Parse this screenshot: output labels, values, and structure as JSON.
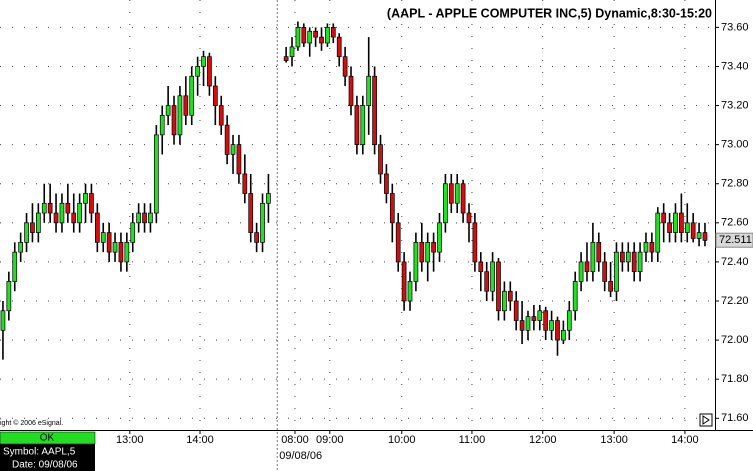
{
  "chart_data": {
    "type": "candlestick",
    "title": "(AAPL - APPLE COMPUTER INC,5) Dynamic,8:30-15:20",
    "copyright": "ight © 2006 eSignal.",
    "date_label": "09/08/06",
    "up_color": "#22e022",
    "down_color": "#d01010",
    "grid": true,
    "ylim": [
      71.54,
      73.74
    ],
    "yticks": [
      {
        "value": 71.6,
        "label": "71.60"
      },
      {
        "value": 71.8,
        "label": "71.80"
      },
      {
        "value": 72.0,
        "label": "72.00"
      },
      {
        "value": 72.2,
        "label": "72.20"
      },
      {
        "value": 72.4,
        "label": "72.40"
      },
      {
        "value": 72.6,
        "label": "72.60"
      },
      {
        "value": 72.8,
        "label": "72.80"
      },
      {
        "value": 73.0,
        "label": "73.00"
      },
      {
        "value": 73.2,
        "label": "73.20"
      },
      {
        "value": 73.4,
        "label": "73.40"
      },
      {
        "value": 73.6,
        "label": "73.60"
      }
    ],
    "xlim": [
      -0.5,
      120.7
    ],
    "xticks": [
      {
        "value": 21.5,
        "label": "13:00"
      },
      {
        "value": 33.4,
        "label": "14:00"
      },
      {
        "value": 49.5,
        "label": "08:00"
      },
      {
        "value": 55.4,
        "label": "09:00"
      },
      {
        "value": 67.6,
        "label": "10:00"
      },
      {
        "value": 79.5,
        "label": "11:00"
      },
      {
        "value": 91.5,
        "label": "12:00"
      },
      {
        "value": 103.6,
        "label": "13:00"
      },
      {
        "value": 115.6,
        "label": "14:00"
      }
    ],
    "last_price": 72.511,
    "x": [
      0,
      1,
      2,
      3,
      4,
      5,
      6,
      7,
      8,
      9,
      10,
      11,
      12,
      13,
      14,
      15,
      16,
      17,
      18,
      19,
      20,
      21,
      22,
      23,
      24,
      25,
      26,
      27,
      28,
      29,
      30,
      31,
      32,
      33,
      34,
      35,
      36,
      37,
      38,
      39,
      40,
      41,
      42,
      43,
      44,
      45,
      48,
      49,
      50,
      51,
      52,
      53,
      54,
      55,
      56,
      57,
      58,
      59,
      60,
      61,
      62,
      63,
      64,
      65,
      66,
      67,
      68,
      69,
      70,
      71,
      72,
      73,
      74,
      75,
      76,
      77,
      78,
      79,
      80,
      81,
      82,
      83,
      84,
      85,
      86,
      87,
      88,
      89,
      90,
      91,
      92,
      93,
      94,
      95,
      96,
      97,
      98,
      99,
      100,
      101,
      102,
      103,
      104,
      105,
      106,
      107,
      108,
      109,
      110,
      111,
      112,
      113,
      114,
      115,
      116,
      117,
      118,
      119
    ],
    "candles": [
      [
        72.05,
        72.2,
        71.9,
        72.15
      ],
      [
        72.15,
        72.35,
        72.1,
        72.3
      ],
      [
        72.3,
        72.5,
        72.25,
        72.45
      ],
      [
        72.45,
        72.55,
        72.4,
        72.5
      ],
      [
        72.5,
        72.65,
        72.45,
        72.6
      ],
      [
        72.6,
        72.7,
        72.5,
        72.55
      ],
      [
        72.55,
        72.7,
        72.5,
        72.65
      ],
      [
        72.65,
        72.8,
        72.6,
        72.7
      ],
      [
        72.7,
        72.8,
        72.6,
        72.65
      ],
      [
        72.65,
        72.75,
        72.55,
        72.6
      ],
      [
        72.6,
        72.75,
        72.55,
        72.7
      ],
      [
        72.7,
        72.8,
        72.6,
        72.65
      ],
      [
        72.65,
        72.75,
        72.55,
        72.6
      ],
      [
        72.6,
        72.75,
        72.55,
        72.7
      ],
      [
        72.7,
        72.8,
        72.6,
        72.75
      ],
      [
        72.75,
        72.8,
        72.6,
        72.65
      ],
      [
        72.65,
        72.7,
        72.45,
        72.5
      ],
      [
        72.5,
        72.6,
        72.45,
        72.55
      ],
      [
        72.55,
        72.6,
        72.4,
        72.45
      ],
      [
        72.45,
        72.55,
        72.4,
        72.5
      ],
      [
        72.5,
        72.55,
        72.35,
        72.4
      ],
      [
        72.4,
        72.55,
        72.35,
        72.5
      ],
      [
        72.5,
        72.65,
        72.45,
        72.6
      ],
      [
        72.6,
        72.7,
        72.55,
        72.65
      ],
      [
        72.65,
        72.7,
        72.55,
        72.6
      ],
      [
        72.6,
        72.7,
        72.55,
        72.65
      ],
      [
        72.65,
        73.1,
        72.6,
        73.05
      ],
      [
        73.05,
        73.2,
        72.95,
        73.15
      ],
      [
        73.15,
        73.3,
        73.1,
        73.2
      ],
      [
        73.2,
        73.25,
        73.0,
        73.05
      ],
      [
        73.05,
        73.3,
        73.0,
        73.25
      ],
      [
        73.25,
        73.35,
        73.1,
        73.15
      ],
      [
        73.15,
        73.4,
        73.1,
        73.35
      ],
      [
        73.35,
        73.45,
        73.25,
        73.4
      ],
      [
        73.4,
        73.48,
        73.3,
        73.45
      ],
      [
        73.45,
        73.47,
        73.25,
        73.3
      ],
      [
        73.3,
        73.35,
        73.1,
        73.2
      ],
      [
        73.2,
        73.25,
        73.05,
        73.1
      ],
      [
        73.1,
        73.15,
        72.9,
        72.95
      ],
      [
        72.95,
        73.05,
        72.85,
        73.0
      ],
      [
        73.0,
        73.05,
        72.8,
        72.85
      ],
      [
        72.85,
        72.95,
        72.7,
        72.75
      ],
      [
        72.75,
        72.85,
        72.5,
        72.55
      ],
      [
        72.55,
        72.6,
        72.45,
        72.5
      ],
      [
        72.5,
        72.75,
        72.45,
        72.7
      ],
      [
        72.7,
        72.85,
        72.6,
        72.75
      ],
      [
        73.45,
        73.5,
        73.42,
        73.43
      ],
      [
        73.45,
        73.55,
        73.4,
        73.5
      ],
      [
        73.5,
        73.63,
        73.48,
        73.6
      ],
      [
        73.6,
        73.62,
        73.5,
        73.52
      ],
      [
        73.52,
        73.6,
        73.45,
        73.58
      ],
      [
        73.58,
        73.6,
        73.5,
        73.55
      ],
      [
        73.55,
        73.6,
        73.48,
        73.52
      ],
      [
        73.52,
        73.62,
        73.5,
        73.6
      ],
      [
        73.6,
        73.62,
        73.52,
        73.55
      ],
      [
        73.55,
        73.57,
        73.4,
        73.45
      ],
      [
        73.45,
        73.5,
        73.3,
        73.35
      ],
      [
        73.35,
        73.4,
        73.15,
        73.2
      ],
      [
        73.2,
        73.25,
        72.95,
        73.0
      ],
      [
        73.0,
        73.25,
        72.95,
        73.2
      ],
      [
        73.2,
        73.55,
        73.05,
        73.35
      ],
      [
        73.35,
        73.4,
        72.95,
        73.0
      ],
      [
        73.0,
        73.05,
        72.8,
        72.85
      ],
      [
        72.85,
        72.9,
        72.7,
        72.75
      ],
      [
        72.75,
        72.8,
        72.5,
        72.6
      ],
      [
        72.6,
        72.65,
        72.35,
        72.4
      ],
      [
        72.4,
        72.45,
        72.15,
        72.2
      ],
      [
        72.2,
        72.35,
        72.15,
        72.3
      ],
      [
        72.3,
        72.55,
        72.25,
        72.5
      ],
      [
        72.5,
        72.6,
        72.35,
        72.4
      ],
      [
        72.4,
        72.55,
        72.3,
        72.5
      ],
      [
        72.5,
        72.55,
        72.35,
        72.45
      ],
      [
        72.45,
        72.65,
        72.4,
        72.6
      ],
      [
        72.6,
        72.85,
        72.55,
        72.8
      ],
      [
        72.8,
        72.85,
        72.65,
        72.7
      ],
      [
        72.7,
        72.85,
        72.65,
        72.8
      ],
      [
        72.8,
        72.82,
        72.6,
        72.65
      ],
      [
        72.65,
        72.7,
        72.5,
        72.6
      ],
      [
        72.6,
        72.65,
        72.35,
        72.4
      ],
      [
        72.4,
        72.45,
        72.25,
        72.35
      ],
      [
        72.35,
        72.4,
        72.2,
        72.25
      ],
      [
        72.25,
        72.45,
        72.2,
        72.4
      ],
      [
        72.4,
        72.42,
        72.1,
        72.15
      ],
      [
        72.15,
        72.3,
        72.1,
        72.25
      ],
      [
        72.25,
        72.3,
        72.15,
        72.2
      ],
      [
        72.2,
        72.25,
        72.05,
        72.1
      ],
      [
        72.1,
        72.2,
        71.98,
        72.05
      ],
      [
        72.05,
        72.15,
        72.0,
        72.12
      ],
      [
        72.12,
        72.18,
        72.05,
        72.1
      ],
      [
        72.1,
        72.18,
        72.05,
        72.15
      ],
      [
        72.15,
        72.17,
        72.0,
        72.05
      ],
      [
        72.05,
        72.15,
        72.0,
        72.1
      ],
      [
        72.1,
        72.12,
        71.92,
        72.0
      ],
      [
        72.0,
        72.1,
        71.98,
        72.05
      ],
      [
        72.05,
        72.2,
        72.0,
        72.15
      ],
      [
        72.15,
        72.35,
        72.1,
        72.3
      ],
      [
        72.3,
        72.45,
        72.25,
        72.4
      ],
      [
        72.4,
        72.5,
        72.3,
        72.35
      ],
      [
        72.35,
        72.6,
        72.3,
        72.5
      ],
      [
        72.5,
        72.55,
        72.35,
        72.4
      ],
      [
        72.4,
        72.45,
        72.25,
        72.3
      ],
      [
        72.3,
        72.4,
        72.22,
        72.25
      ],
      [
        72.25,
        72.5,
        72.2,
        72.45
      ],
      [
        72.45,
        72.5,
        72.35,
        72.4
      ],
      [
        72.4,
        72.5,
        72.35,
        72.45
      ],
      [
        72.45,
        72.5,
        72.3,
        72.35
      ],
      [
        72.35,
        72.5,
        72.3,
        72.45
      ],
      [
        72.45,
        72.55,
        72.4,
        72.5
      ],
      [
        72.5,
        72.55,
        72.4,
        72.45
      ],
      [
        72.45,
        72.68,
        72.4,
        72.65
      ],
      [
        72.65,
        72.7,
        72.5,
        72.6
      ],
      [
        72.6,
        72.65,
        72.5,
        72.55
      ],
      [
        72.55,
        72.7,
        72.5,
        72.65
      ],
      [
        72.65,
        72.75,
        72.5,
        72.55
      ],
      [
        72.55,
        72.7,
        72.5,
        72.6
      ],
      [
        72.6,
        72.65,
        72.5,
        72.52
      ],
      [
        72.52,
        72.6,
        72.48,
        72.55
      ],
      [
        72.55,
        72.6,
        72.48,
        72.51
      ]
    ]
  },
  "status_panel": {
    "status": "OK",
    "symbol": "Symbol: AAPL,5",
    "date": "Date: 09/08/06"
  }
}
